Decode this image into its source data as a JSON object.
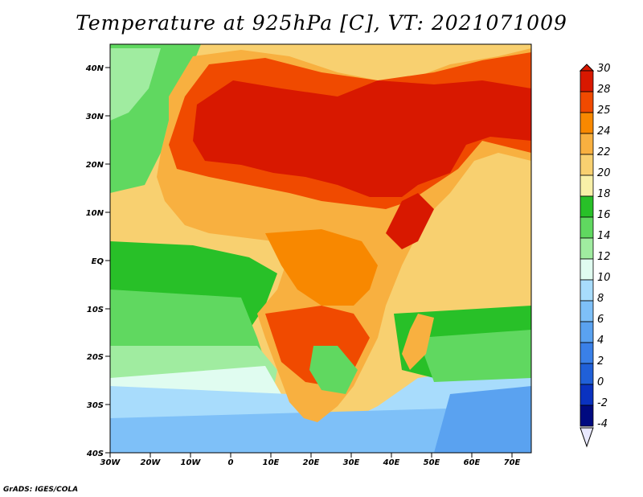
{
  "title": "Temperature at 925hPa [C], VT: 2021071009",
  "credit": "GrADS: IGES/COLA",
  "axes": {
    "x_ticks": [
      "30W",
      "20W",
      "10W",
      "0",
      "10E",
      "20E",
      "30E",
      "40E",
      "50E",
      "60E",
      "70E"
    ],
    "y_ticks": [
      "40N",
      "30N",
      "20N",
      "10N",
      "EQ",
      "10S",
      "20S",
      "30S",
      "40S"
    ]
  },
  "colorbar": {
    "labels": [
      "30",
      "28",
      "25",
      "24",
      "22",
      "20",
      "18",
      "16",
      "14",
      "12",
      "10",
      "8",
      "6",
      "4",
      "2",
      "0",
      "-2",
      "-4"
    ],
    "colors": [
      "#a80000",
      "#d81800",
      "#f04a00",
      "#f88800",
      "#f8b040",
      "#f8d070",
      "#f8f0a8",
      "#28c028",
      "#60d860",
      "#a0eca0",
      "#e0fcf0",
      "#a8dcfc",
      "#7ec0f8",
      "#5aa2f0",
      "#3a80e8",
      "#2060d8",
      "#0a32c0",
      "#000a80",
      "#000060"
    ]
  },
  "regions": {
    "ocean_color": "#5aa2f0",
    "sahara_color": "#d81800",
    "savanna_color": "#f8b040"
  }
}
